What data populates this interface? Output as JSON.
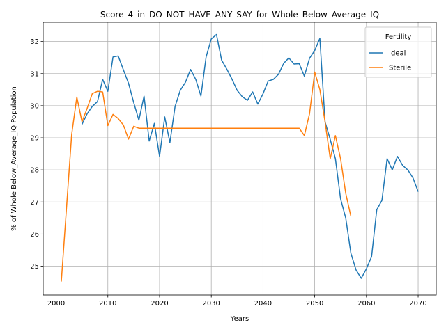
{
  "chart_data": {
    "type": "line",
    "title": "Score_4_in_DO_NOT_HAVE_ANY_SAY_for_Whole_Below_Average_IQ",
    "xlabel": "Years",
    "ylabel": "% of Whole Below_Average_IQ Population",
    "xlim": [
      1997.5,
      2073.5
    ],
    "ylim": [
      24.1,
      32.6
    ],
    "xticks": [
      2000,
      2010,
      2020,
      2030,
      2040,
      2050,
      2060,
      2070
    ],
    "yticks": [
      25,
      26,
      27,
      28,
      29,
      30,
      31,
      32
    ],
    "grid": true,
    "legend": {
      "title": "Fertility",
      "position": "top-right"
    },
    "series": [
      {
        "name": "Ideal",
        "color": "#1f77b4",
        "x": [
          2005,
          2006,
          2007,
          2008,
          2009,
          2010,
          2011,
          2012,
          2013,
          2014,
          2015,
          2016,
          2017,
          2018,
          2019,
          2020,
          2021,
          2022,
          2023,
          2024,
          2025,
          2026,
          2027,
          2028,
          2029,
          2030,
          2031,
          2032,
          2033,
          2034,
          2035,
          2036,
          2037,
          2038,
          2039,
          2040,
          2041,
          2042,
          2043,
          2044,
          2045,
          2046,
          2047,
          2048,
          2049,
          2050,
          2051,
          2052,
          2053,
          2054,
          2055,
          2056,
          2057,
          2058,
          2059,
          2060,
          2061,
          2062,
          2063,
          2064,
          2065,
          2066,
          2067,
          2068,
          2069,
          2070
        ],
        "values": [
          29.42,
          29.75,
          29.98,
          30.13,
          30.82,
          30.45,
          31.52,
          31.55,
          31.12,
          30.7,
          30.1,
          29.55,
          30.3,
          28.9,
          29.45,
          28.42,
          29.65,
          28.85,
          29.98,
          30.48,
          30.73,
          31.13,
          30.82,
          30.3,
          31.52,
          32.08,
          32.22,
          31.42,
          31.14,
          30.83,
          30.48,
          30.28,
          30.17,
          30.43,
          30.05,
          30.37,
          30.77,
          30.82,
          30.98,
          31.32,
          31.49,
          31.3,
          31.31,
          30.92,
          31.48,
          31.72,
          32.1,
          29.5,
          28.95,
          28.35,
          27.1,
          26.5,
          25.4,
          24.88,
          24.62,
          24.92,
          25.3,
          26.76,
          27.05,
          28.35,
          28.0,
          28.42,
          28.14,
          28.0,
          27.75,
          27.32
        ]
      },
      {
        "name": "Sterile",
        "color": "#ff7f0e",
        "x": [
          2001,
          2002,
          2003,
          2004,
          2005,
          2006,
          2007,
          2008,
          2009,
          2010,
          2011,
          2012,
          2013,
          2014,
          2015,
          2016,
          2017,
          2018,
          2019,
          2020,
          2021,
          2022,
          2023,
          2024,
          2025,
          2026,
          2027,
          2028,
          2029,
          2030,
          2031,
          2032,
          2033,
          2034,
          2035,
          2036,
          2037,
          2038,
          2039,
          2040,
          2041,
          2042,
          2043,
          2044,
          2045,
          2046,
          2047,
          2048,
          2049,
          2050,
          2051,
          2052,
          2053,
          2054,
          2055,
          2056,
          2057
        ],
        "values": [
          24.52,
          26.8,
          29.1,
          30.27,
          29.5,
          29.92,
          30.38,
          30.45,
          30.43,
          29.38,
          29.73,
          29.6,
          29.4,
          28.96,
          29.36,
          29.3,
          29.3,
          29.3,
          29.3,
          29.3,
          29.3,
          29.3,
          29.3,
          29.3,
          29.3,
          29.3,
          29.3,
          29.3,
          29.3,
          29.3,
          29.3,
          29.3,
          29.3,
          29.3,
          29.3,
          29.3,
          29.3,
          29.3,
          29.3,
          29.3,
          29.3,
          29.3,
          29.3,
          29.3,
          29.3,
          29.3,
          29.3,
          29.07,
          29.75,
          31.05,
          30.5,
          29.5,
          28.35,
          29.07,
          28.35,
          27.27,
          26.55
        ]
      }
    ]
  }
}
